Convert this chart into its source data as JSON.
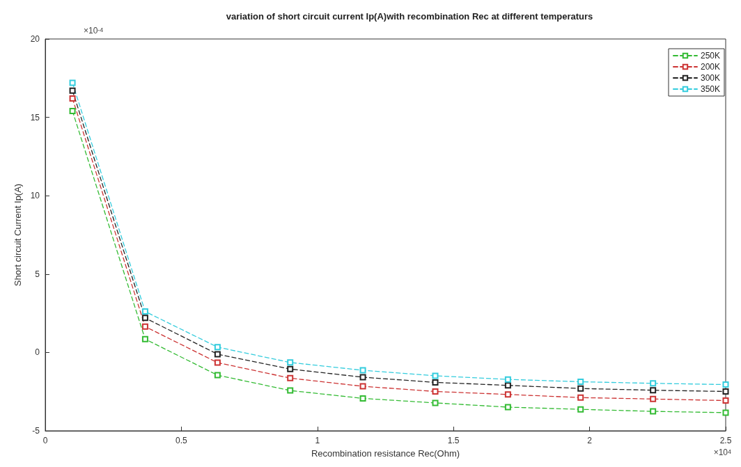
{
  "chart_data": {
    "type": "line",
    "title": "variation of short circuit current Ip(A)with recombination Rec at different temperaturs",
    "xlabel": "Recombination resistance Rec(Ohm)",
    "ylabel": "Short circuit Current Ip(A)",
    "annotations": [
      "×10$^{-4}$",
      "×10$^{4}$"
    ],
    "x": [
      0.1,
      0.367,
      0.633,
      0.9,
      1.167,
      1.433,
      1.7,
      1.967,
      2.233,
      2.5
    ],
    "series": [
      {
        "name": "250K",
        "color": "#33bb33",
        "values": [
          15.4,
          0.85,
          -1.45,
          -2.43,
          -2.93,
          -3.22,
          -3.49,
          -3.63,
          -3.76,
          -3.84
        ]
      },
      {
        "name": "200K",
        "color": "#cc3333",
        "values": [
          16.2,
          1.65,
          -0.65,
          -1.64,
          -2.16,
          -2.49,
          -2.68,
          -2.88,
          -2.97,
          -3.07
        ]
      },
      {
        "name": "300K",
        "color": "#222222",
        "values": [
          16.7,
          2.2,
          -0.11,
          -1.06,
          -1.58,
          -1.91,
          -2.1,
          -2.3,
          -2.41,
          -2.49
        ]
      },
      {
        "name": "350K",
        "color": "#33ccdd",
        "values": [
          17.2,
          2.61,
          0.34,
          -0.64,
          -1.14,
          -1.49,
          -1.72,
          -1.87,
          -1.97,
          -2.05
        ]
      }
    ],
    "xlim": [
      0,
      2.5
    ],
    "xticks": [
      0,
      0.5,
      1,
      1.5,
      2,
      2.5
    ],
    "ylim": [
      -5,
      20
    ],
    "yticks": [
      -5,
      0,
      5,
      10,
      15,
      20
    ],
    "grid": false,
    "legend": "top right",
    "marker": "square",
    "line_style": "dashed"
  }
}
